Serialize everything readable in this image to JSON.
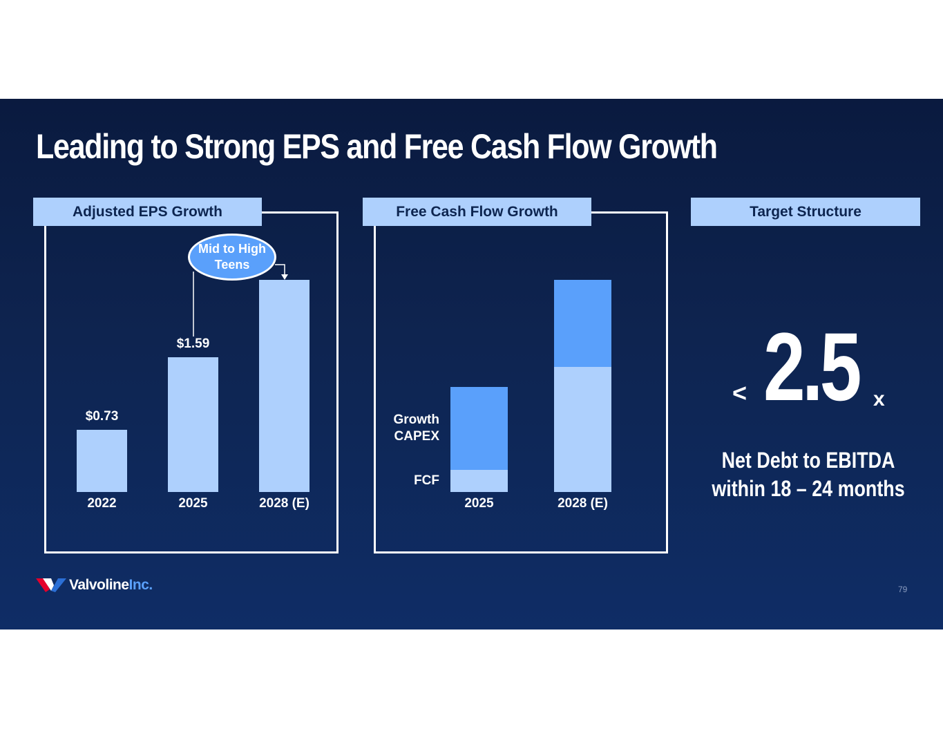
{
  "title": "Leading to Strong EPS and Free Cash Flow Growth",
  "colors": {
    "background": "#0e2450",
    "light_blue": "#aed0fd",
    "mid_blue": "#5aa0fb",
    "white": "#ffffff"
  },
  "chart_data": [
    {
      "type": "bar",
      "title": "Adjusted EPS Growth",
      "categories": [
        "2022",
        "2025",
        "2028 (E)"
      ],
      "values": [
        0.73,
        1.59,
        2.5
      ],
      "value_labels": [
        "$0.73",
        "$1.59",
        ""
      ],
      "annotation": "Mid to High Teens",
      "ylim": [
        0,
        2.5
      ],
      "xlabel": "",
      "ylabel": "",
      "legend": "none"
    },
    {
      "type": "bar",
      "title": "Free Cash Flow Growth",
      "stacked": true,
      "categories": [
        "2025",
        "2028 (E)"
      ],
      "series": [
        {
          "name": "FCF",
          "values": [
            10,
            56
          ]
        },
        {
          "name": "Growth CAPEX",
          "values": [
            37,
            39
          ]
        }
      ],
      "series_labels": [
        "FCF",
        "Growth\nCAPEX"
      ],
      "ylim": [
        0,
        95
      ],
      "xlabel": "",
      "ylabel": "",
      "legend": "left-inline"
    }
  ],
  "target": {
    "header": "Target Structure",
    "less_than": "<",
    "value": "2.5",
    "suffix": "x",
    "line1": "Net Debt to EBITDA",
    "line2": "within 18 – 24 months"
  },
  "footer": {
    "logo_main": "Valvoline",
    "logo_inc": "Inc.",
    "page_number": "79"
  }
}
